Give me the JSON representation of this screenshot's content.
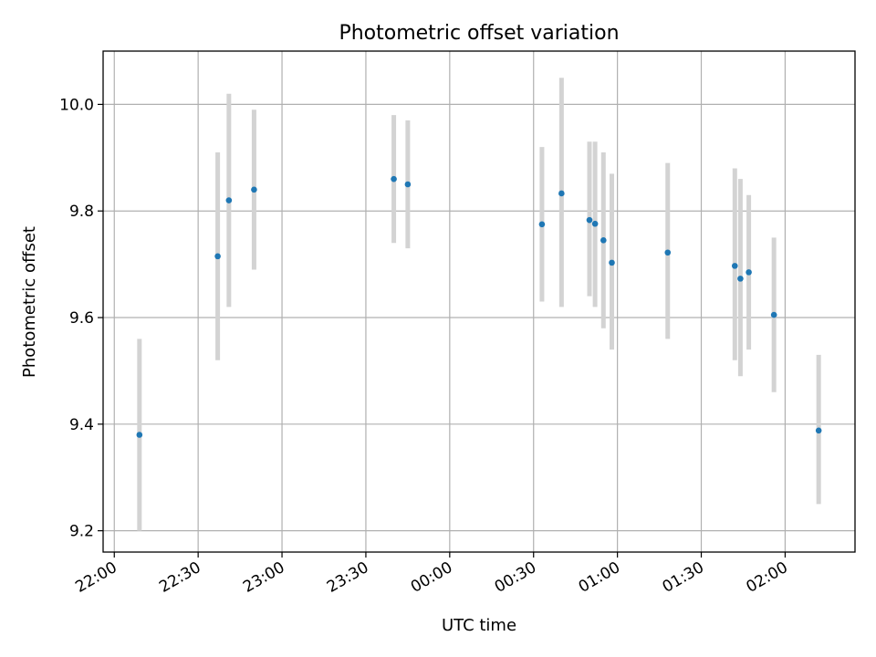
{
  "chart_data": {
    "type": "scatter",
    "title": "Photometric offset variation",
    "xlabel": "UTC time",
    "ylabel": "Photometric offset",
    "x_ticks": [
      "22:00",
      "22:30",
      "23:00",
      "23:30",
      "00:00",
      "00:30",
      "01:00",
      "01:30",
      "02:00"
    ],
    "y_ticks": [
      "9.2",
      "9.4",
      "9.6",
      "9.8",
      "10.0"
    ],
    "xlim": [
      "21:56",
      "02:25"
    ],
    "ylim": [
      9.16,
      10.1
    ],
    "grid": true,
    "colors": {
      "points": "#1f77b4",
      "errorbars": "#d3d3d3"
    },
    "points": [
      {
        "x": "22:09",
        "y": 9.38,
        "ylo": 9.2,
        "yhi": 9.56
      },
      {
        "x": "22:37",
        "y": 9.715,
        "ylo": 9.52,
        "yhi": 9.91
      },
      {
        "x": "22:41",
        "y": 9.82,
        "ylo": 9.62,
        "yhi": 10.02
      },
      {
        "x": "22:50",
        "y": 9.84,
        "ylo": 9.69,
        "yhi": 9.99
      },
      {
        "x": "23:40",
        "y": 9.86,
        "ylo": 9.74,
        "yhi": 9.98
      },
      {
        "x": "23:45",
        "y": 9.85,
        "ylo": 9.73,
        "yhi": 9.97
      },
      {
        "x": "00:33",
        "y": 9.775,
        "ylo": 9.63,
        "yhi": 9.92
      },
      {
        "x": "00:40",
        "y": 9.833,
        "ylo": 9.62,
        "yhi": 10.05
      },
      {
        "x": "00:50",
        "y": 9.783,
        "ylo": 9.64,
        "yhi": 9.93
      },
      {
        "x": "00:52",
        "y": 9.776,
        "ylo": 9.62,
        "yhi": 9.93
      },
      {
        "x": "00:55",
        "y": 9.745,
        "ylo": 9.58,
        "yhi": 9.91
      },
      {
        "x": "00:58",
        "y": 9.703,
        "ylo": 9.54,
        "yhi": 9.87
      },
      {
        "x": "01:18",
        "y": 9.722,
        "ylo": 9.56,
        "yhi": 9.89
      },
      {
        "x": "01:42",
        "y": 9.697,
        "ylo": 9.52,
        "yhi": 9.88
      },
      {
        "x": "01:44",
        "y": 9.673,
        "ylo": 9.49,
        "yhi": 9.86
      },
      {
        "x": "01:47",
        "y": 9.685,
        "ylo": 9.54,
        "yhi": 9.83
      },
      {
        "x": "01:56",
        "y": 9.605,
        "ylo": 9.46,
        "yhi": 9.75
      },
      {
        "x": "02:12",
        "y": 9.388,
        "ylo": 9.25,
        "yhi": 9.53
      }
    ]
  }
}
